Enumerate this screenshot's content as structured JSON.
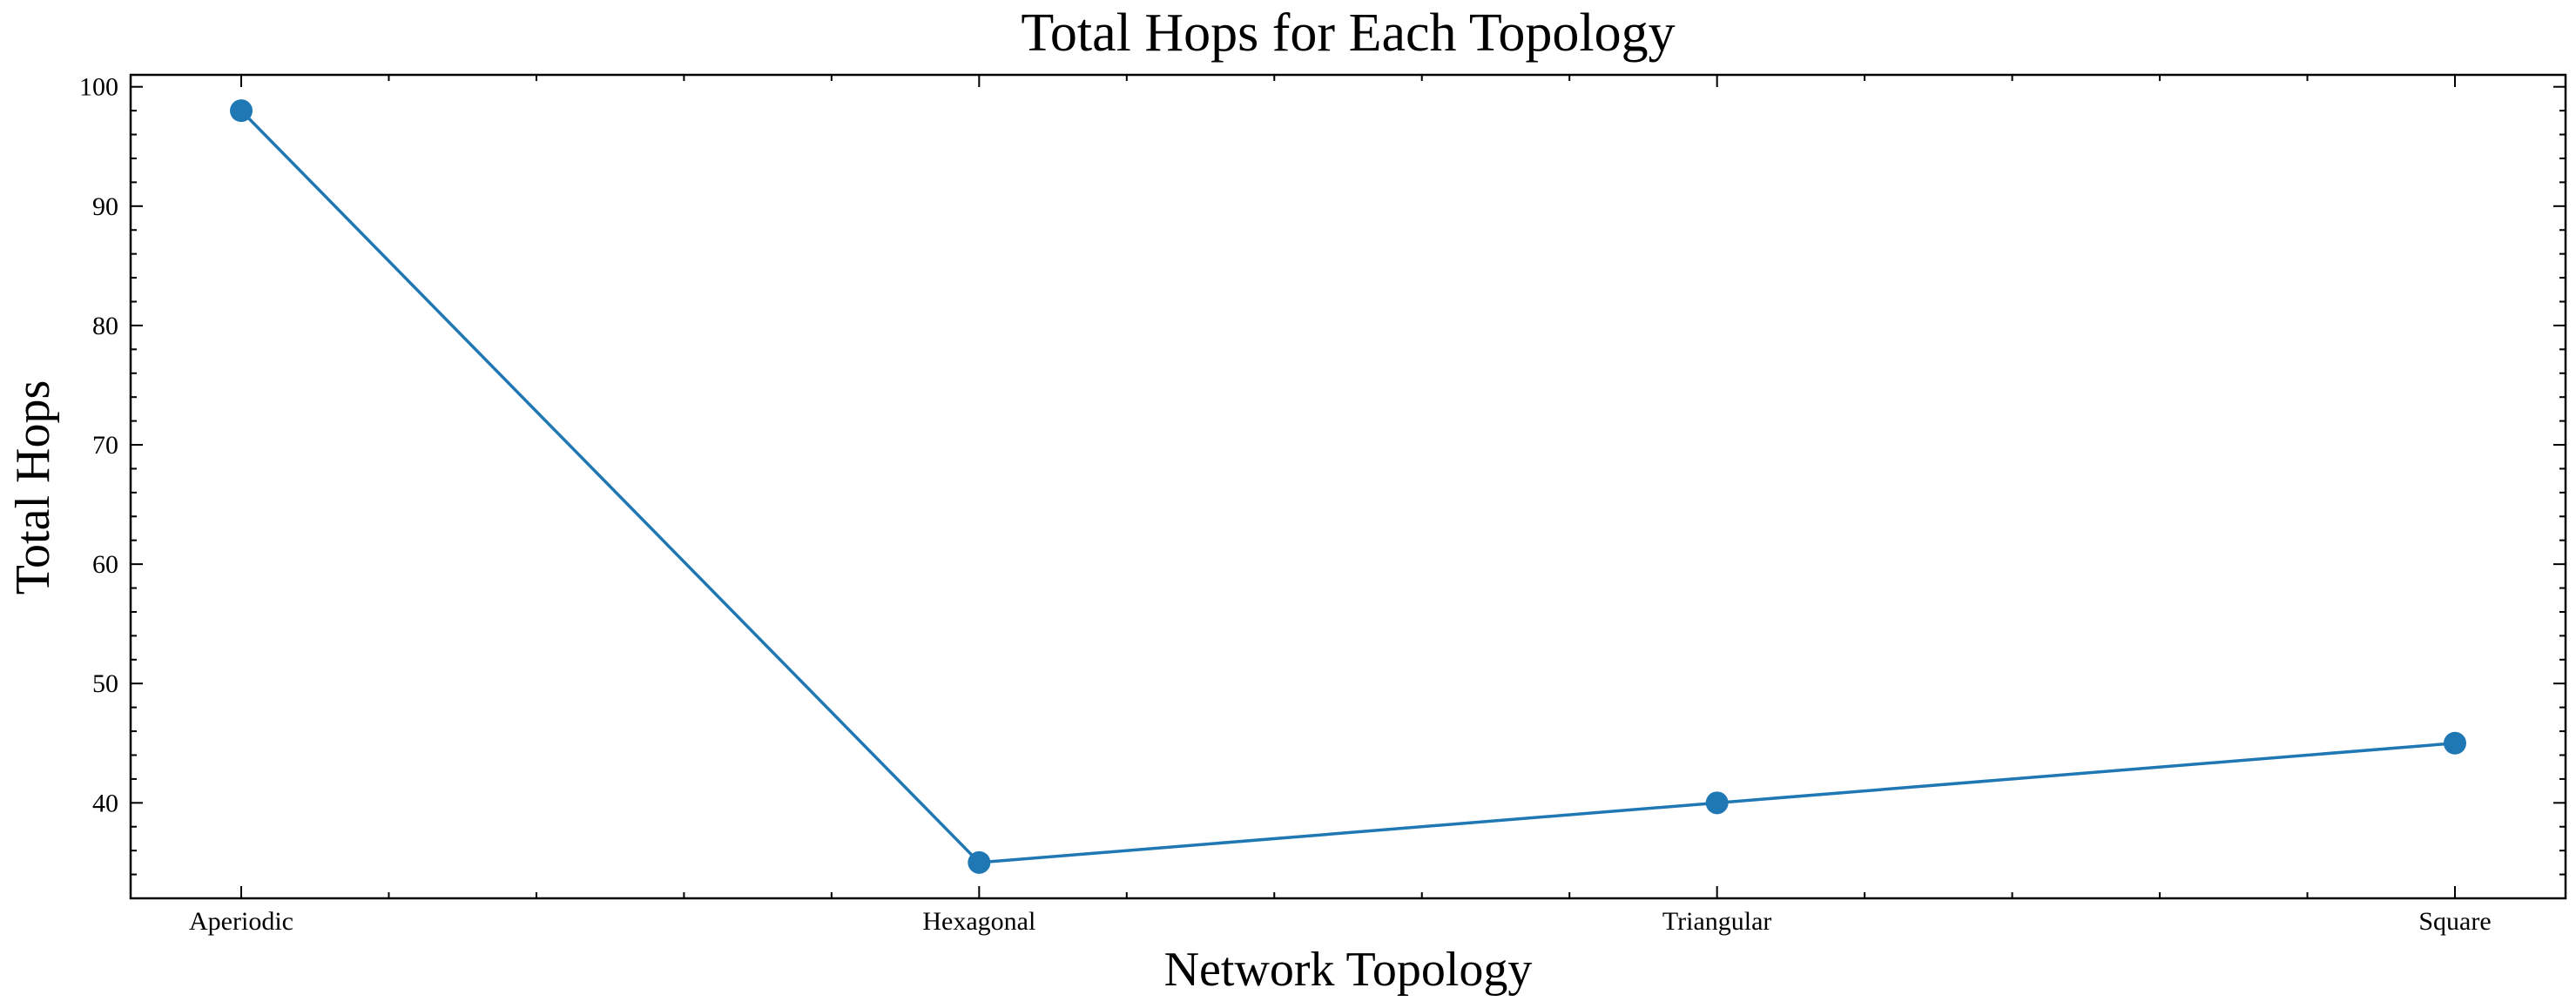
{
  "chart_data": {
    "type": "line",
    "title": "Total Hops for Each Topology",
    "xlabel": "Network Topology",
    "ylabel": "Total Hops",
    "categories": [
      "Aperiodic",
      "Hexagonal",
      "Triangular",
      "Square"
    ],
    "series": [
      {
        "values": [
          98,
          35,
          40,
          45
        ],
        "color": "#1f77b4",
        "marker": "circle"
      }
    ],
    "ylim": [
      32,
      101
    ],
    "yticks": [
      40,
      50,
      60,
      70,
      80,
      90,
      100
    ],
    "grid": false,
    "legend": "none"
  }
}
